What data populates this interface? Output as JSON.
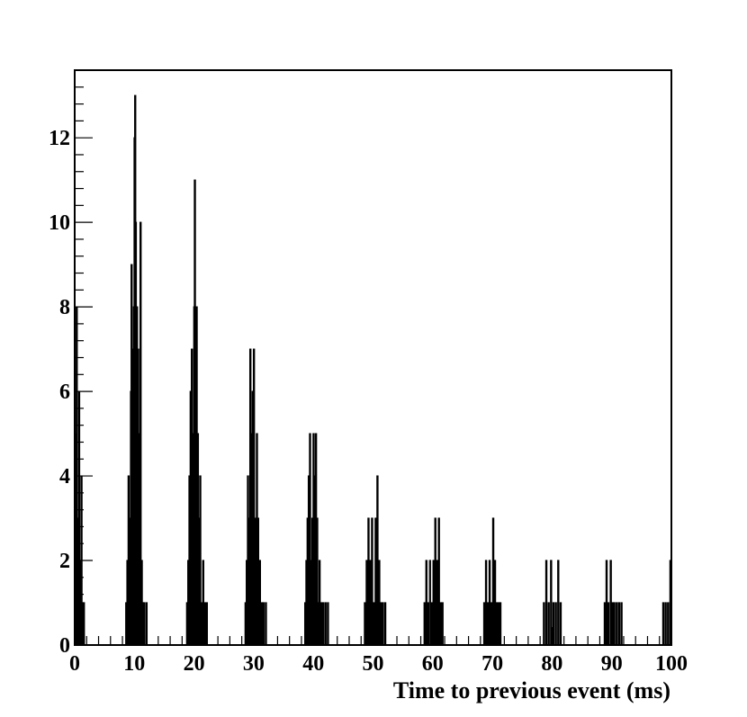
{
  "chart_data": {
    "type": "bar",
    "title": "",
    "xlabel": "Time to previous event (ms)",
    "ylabel": "",
    "xlim": [
      0,
      100
    ],
    "ylim": [
      0,
      13.6
    ],
    "grid": false,
    "legend": "none",
    "bar_color": "#000000",
    "bin_width": 0.1,
    "x_ticks": [
      0,
      10,
      20,
      30,
      40,
      50,
      60,
      70,
      80,
      90,
      100
    ],
    "x_tick_labels": [
      "0",
      "10",
      "20",
      "30",
      "40",
      "50",
      "60",
      "70",
      "80",
      "90",
      "100"
    ],
    "y_ticks": [
      0,
      2,
      4,
      6,
      8,
      10,
      12
    ],
    "y_tick_labels": [
      "0",
      "2",
      "4",
      "6",
      "8",
      "10",
      "12"
    ],
    "x": [
      0.1,
      0.3,
      0.5,
      0.7,
      0.9,
      1.1,
      1.3,
      1.5,
      8.6,
      8.8,
      9.0,
      9.2,
      9.4,
      9.5,
      9.6,
      9.7,
      9.8,
      9.9,
      10.0,
      10.1,
      10.2,
      10.3,
      10.4,
      10.5,
      10.6,
      10.8,
      11.0,
      11.2,
      11.4,
      11.6,
      12.0,
      18.8,
      19.0,
      19.2,
      19.4,
      19.6,
      19.8,
      20.0,
      20.1,
      20.2,
      20.3,
      20.4,
      20.5,
      20.6,
      20.7,
      20.8,
      21.0,
      21.2,
      21.5,
      21.8,
      22.1,
      28.6,
      28.8,
      29.0,
      29.2,
      29.4,
      29.6,
      29.8,
      29.9,
      30.0,
      30.1,
      30.3,
      30.5,
      30.7,
      31.0,
      31.3,
      31.6,
      32.0,
      38.6,
      38.8,
      39.0,
      39.2,
      39.4,
      39.6,
      39.8,
      40.0,
      40.2,
      40.4,
      40.6,
      40.8,
      41.0,
      41.3,
      41.6,
      42.0,
      42.4,
      48.6,
      48.9,
      49.2,
      49.5,
      49.8,
      50.1,
      50.4,
      50.7,
      51.0,
      51.3,
      51.6,
      52.0,
      58.6,
      58.9,
      59.2,
      59.5,
      59.8,
      60.1,
      60.4,
      60.7,
      61.0,
      61.3,
      61.6,
      68.6,
      68.9,
      69.2,
      69.5,
      69.8,
      70.1,
      70.4,
      70.7,
      71.0,
      71.3,
      78.6,
      79.0,
      79.4,
      79.8,
      80.2,
      80.6,
      81.0,
      81.4,
      88.8,
      89.1,
      89.4,
      89.8,
      90.1,
      90.4,
      90.8,
      91.2,
      91.6,
      98.6,
      99.0,
      99.4,
      99.8
    ],
    "values": [
      5,
      8,
      3,
      6,
      2,
      4,
      1,
      1,
      1,
      2,
      4,
      3,
      6,
      9,
      7,
      5,
      3,
      8,
      12,
      13,
      10,
      6,
      8,
      4,
      7,
      5,
      10,
      2,
      1,
      1,
      1,
      1,
      2,
      4,
      6,
      7,
      5,
      8,
      11,
      6,
      4,
      8,
      3,
      5,
      2,
      3,
      4,
      1,
      2,
      1,
      1,
      1,
      2,
      4,
      3,
      7,
      5,
      6,
      4,
      7,
      2,
      3,
      5,
      3,
      2,
      1,
      1,
      1,
      1,
      2,
      3,
      4,
      5,
      2,
      3,
      5,
      4,
      5,
      3,
      1,
      2,
      1,
      1,
      1,
      1,
      1,
      2,
      3,
      2,
      3,
      1,
      3,
      4,
      2,
      1,
      1,
      1,
      1,
      2,
      1,
      2,
      1,
      2,
      3,
      2,
      3,
      1,
      1,
      1,
      2,
      1,
      2,
      1,
      3,
      2,
      1,
      1,
      1,
      1,
      2,
      1,
      2,
      1,
      1,
      2,
      1,
      1,
      2,
      1,
      2,
      1,
      1,
      1,
      1,
      1,
      1,
      1,
      1,
      2
    ]
  }
}
